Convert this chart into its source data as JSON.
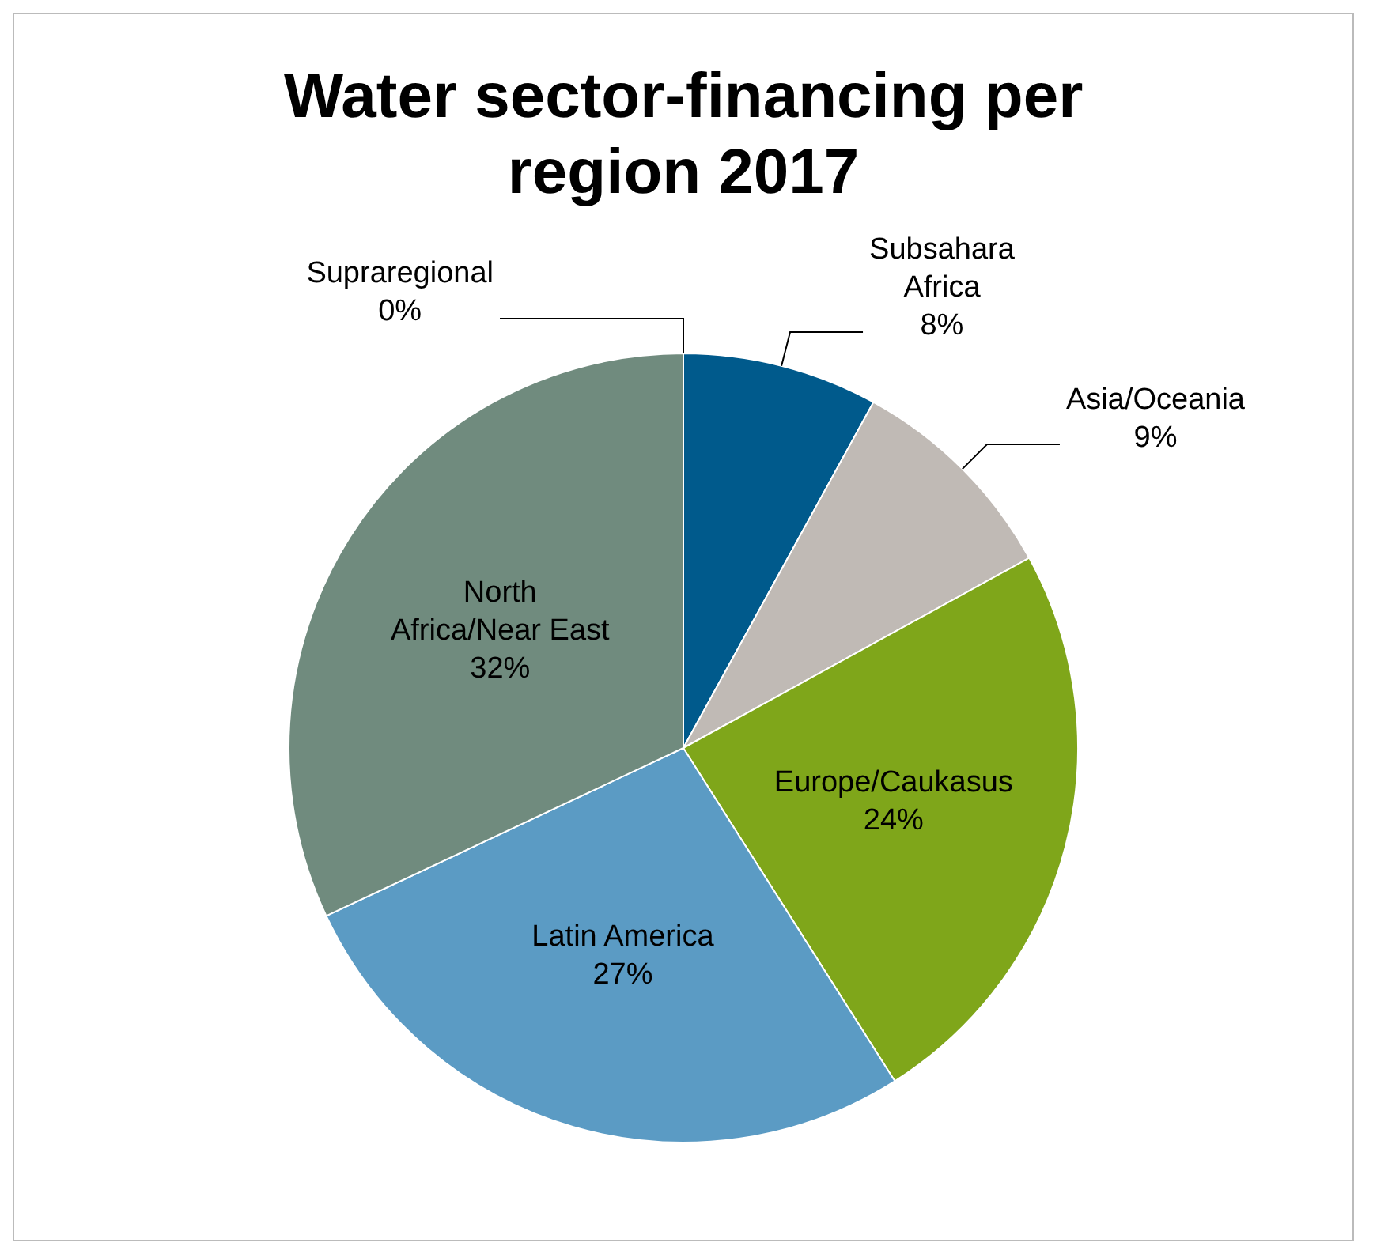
{
  "chart_data": {
    "type": "pie",
    "title": "Water sector-financing per region 2017",
    "categories": [
      "Subsahara Africa",
      "Asia/Oceania",
      "Europe/Caukasus",
      "Latin America",
      "North Africa/Near East",
      "Supraregional"
    ],
    "values": [
      8,
      9,
      24,
      27,
      32,
      0
    ],
    "colors": [
      "#005a8c",
      "#c0bab5",
      "#7fa61a",
      "#5b9bc4",
      "#708b7e",
      "#4f81bd"
    ],
    "value_labels": [
      "8%",
      "9%",
      "24%",
      "27%",
      "32%",
      "0%"
    ]
  }
}
